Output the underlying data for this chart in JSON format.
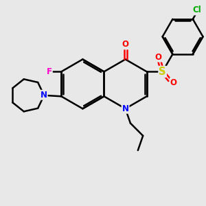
{
  "bg_color": "#e8e8e8",
  "bond_color": "#000000",
  "bond_width": 1.8,
  "atom_colors": {
    "O": "#ff0000",
    "N": "#0000ff",
    "F": "#ff00cc",
    "S": "#cccc00",
    "Cl": "#00aa00"
  },
  "font_size": 8.5,
  "figsize": [
    3.0,
    3.0
  ],
  "dpi": 100,
  "xlim": [
    0,
    10
  ],
  "ylim": [
    0,
    10
  ]
}
